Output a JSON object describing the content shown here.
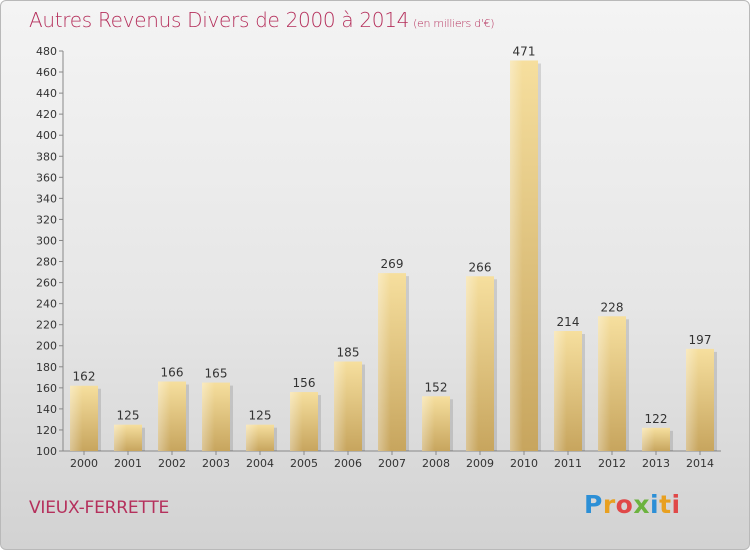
{
  "title": "Autres Revenus Divers de 2000 à 2014",
  "subtitle": "(en milliers d'€)",
  "commune": "VIEUX-FERRETTE",
  "logo": {
    "text": "Proxiti",
    "colors": [
      "#2c8fd6",
      "#e8a020",
      "#e04848",
      "#6cb33f"
    ]
  },
  "colors": {
    "title": "#b5305c",
    "bar_light": "#f6df9e",
    "bar_dark": "#c7a55e"
  },
  "chart_data": {
    "type": "bar",
    "categories": [
      "2000",
      "2001",
      "2002",
      "2003",
      "2004",
      "2005",
      "2006",
      "2007",
      "2008",
      "2009",
      "2010",
      "2011",
      "2012",
      "2013",
      "2014"
    ],
    "values": [
      162,
      125,
      166,
      165,
      125,
      156,
      185,
      269,
      152,
      266,
      471,
      214,
      228,
      122,
      197
    ],
    "ylim": [
      100,
      480
    ],
    "yticks": [
      100,
      120,
      140,
      160,
      180,
      200,
      220,
      240,
      260,
      280,
      300,
      320,
      340,
      360,
      380,
      400,
      420,
      440,
      460,
      480
    ],
    "grid": false,
    "legend": "none",
    "xlabel": "",
    "ylabel": ""
  }
}
